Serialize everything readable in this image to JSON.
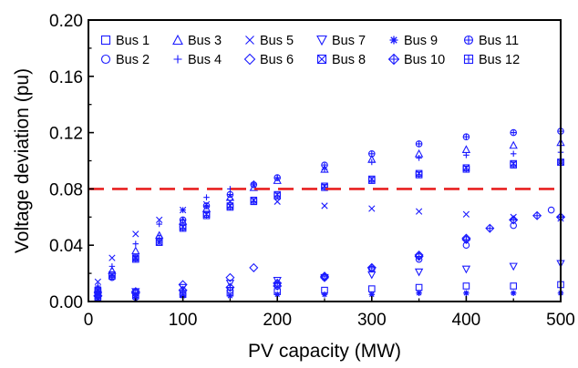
{
  "chart_data": {
    "type": "scatter",
    "xlabel": "PV capacity  (MW)",
    "ylabel": "Voltage deviation (pu)",
    "xlim": [
      0,
      500
    ],
    "ylim": [
      0,
      0.2
    ],
    "xticks": [
      0,
      100,
      200,
      300,
      400,
      500
    ],
    "xtick_labels": [
      "0",
      "100",
      "200",
      "300",
      "400",
      "500"
    ],
    "yticks": [
      0,
      0.04,
      0.08,
      0.12,
      0.16,
      0.2
    ],
    "ytick_labels": [
      "0.00",
      "0.04",
      "0.08",
      "0.12",
      "0.16",
      "0.20"
    ],
    "grid": false,
    "legend_position": "top",
    "marker_color": "#1a1aff",
    "threshold": {
      "y": 0.08,
      "color": "#e82020",
      "style": "dashed"
    },
    "series": [
      {
        "name": "Bus 1",
        "marker": "square",
        "x": [
          10,
          50,
          100,
          150,
          200,
          250,
          300,
          350,
          400,
          450,
          500
        ],
        "y": [
          0.003,
          0.004,
          0.005,
          0.006,
          0.007,
          0.008,
          0.009,
          0.01,
          0.011,
          0.011,
          0.012
        ]
      },
      {
        "name": "Bus 2",
        "marker": "circle",
        "x": [
          10,
          50,
          100,
          150,
          200,
          250,
          300,
          350,
          400,
          450,
          490
        ],
        "y": [
          0.002,
          0.003,
          0.005,
          0.008,
          0.012,
          0.017,
          0.023,
          0.03,
          0.04,
          0.054,
          0.065
        ]
      },
      {
        "name": "Bus 3",
        "marker": "triangle-up",
        "x": [
          10,
          25,
          50,
          75,
          100,
          125,
          150,
          175,
          200,
          250,
          300,
          350,
          400,
          450,
          500
        ],
        "y": [
          0.009,
          0.022,
          0.036,
          0.047,
          0.057,
          0.066,
          0.074,
          0.081,
          0.086,
          0.094,
          0.101,
          0.105,
          0.108,
          0.111,
          0.113
        ]
      },
      {
        "name": "Bus 4",
        "marker": "plus",
        "x": [
          10,
          25,
          50,
          75,
          100,
          125,
          150,
          175,
          200,
          250,
          300,
          350,
          400,
          450,
          500
        ],
        "y": [
          0.011,
          0.025,
          0.041,
          0.055,
          0.065,
          0.074,
          0.08,
          0.084,
          0.088,
          0.094,
          0.099,
          0.102,
          0.104,
          0.105,
          0.106
        ]
      },
      {
        "name": "Bus 5",
        "marker": "x",
        "x": [
          10,
          25,
          50,
          75,
          100,
          125,
          150,
          175,
          200,
          250,
          300,
          350,
          400,
          450,
          500
        ],
        "y": [
          0.014,
          0.031,
          0.048,
          0.058,
          0.065,
          0.069,
          0.071,
          0.072,
          0.071,
          0.068,
          0.066,
          0.064,
          0.062,
          0.06,
          0.059
        ]
      },
      {
        "name": "Bus 6",
        "marker": "diamond",
        "x": [
          10,
          50,
          100,
          150,
          175,
          200,
          250,
          300,
          350,
          400,
          450,
          500
        ],
        "y": [
          0.004,
          0.007,
          0.012,
          0.017,
          0.024,
          0.011,
          0.017,
          0.024,
          0.033,
          0.045,
          0.058,
          0.06
        ]
      },
      {
        "name": "Bus 7",
        "marker": "triangle-down",
        "x": [
          10,
          50,
          100,
          150,
          200,
          250,
          300,
          350,
          400,
          450,
          500
        ],
        "y": [
          0.004,
          0.007,
          0.01,
          0.013,
          0.015,
          0.017,
          0.019,
          0.021,
          0.023,
          0.025,
          0.027
        ]
      },
      {
        "name": "Bus 8",
        "marker": "square-x",
        "x": [
          10,
          25,
          50,
          75,
          100,
          125,
          150,
          175,
          200,
          250,
          300,
          350,
          400,
          450,
          500
        ],
        "y": [
          0.008,
          0.019,
          0.031,
          0.042,
          0.053,
          0.062,
          0.068,
          0.072,
          0.076,
          0.082,
          0.087,
          0.091,
          0.095,
          0.098,
          0.099
        ]
      },
      {
        "name": "Bus 9",
        "marker": "asterisk",
        "x": [
          10,
          50,
          100,
          150,
          200,
          250,
          300,
          350,
          400,
          450,
          500
        ],
        "y": [
          0.002,
          0.003,
          0.004,
          0.004,
          0.005,
          0.005,
          0.005,
          0.006,
          0.006,
          0.006,
          0.006
        ]
      },
      {
        "name": "Bus 10",
        "marker": "diamond-plus",
        "x": [
          10,
          50,
          100,
          150,
          200,
          250,
          300,
          350,
          400,
          425,
          450,
          475,
          500
        ],
        "y": [
          0.004,
          0.006,
          0.008,
          0.01,
          0.013,
          0.018,
          0.024,
          0.032,
          0.044,
          0.052,
          0.058,
          0.061,
          0.06
        ]
      },
      {
        "name": "Bus 11",
        "marker": "circle-plus",
        "x": [
          10,
          25,
          50,
          75,
          100,
          125,
          150,
          175,
          200,
          250,
          300,
          350,
          400,
          450,
          500
        ],
        "y": [
          0.006,
          0.017,
          0.031,
          0.045,
          0.058,
          0.068,
          0.076,
          0.083,
          0.088,
          0.097,
          0.105,
          0.112,
          0.117,
          0.12,
          0.121
        ]
      },
      {
        "name": "Bus 12",
        "marker": "square-plus",
        "x": [
          10,
          25,
          50,
          75,
          100,
          125,
          150,
          175,
          200,
          250,
          300,
          350,
          400,
          450,
          500
        ],
        "y": [
          0.007,
          0.018,
          0.03,
          0.042,
          0.052,
          0.061,
          0.067,
          0.071,
          0.075,
          0.081,
          0.086,
          0.09,
          0.094,
          0.097,
          0.099
        ]
      }
    ]
  }
}
